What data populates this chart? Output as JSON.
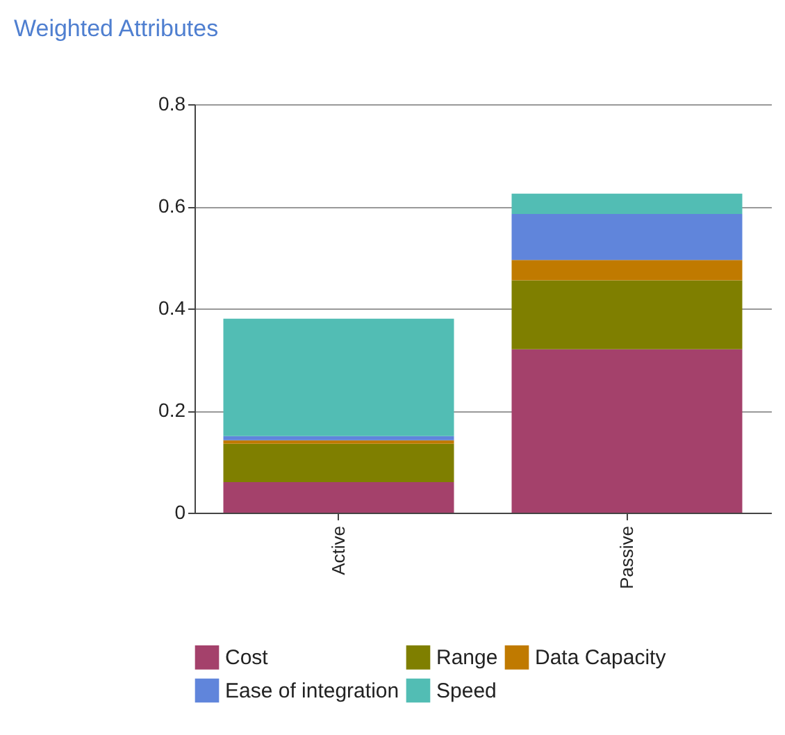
{
  "chart_data": {
    "type": "bar",
    "title": "Weighted Attributes",
    "stacked": true,
    "categories": [
      "Active",
      "Passive"
    ],
    "series": [
      {
        "name": "Cost",
        "color": "#a4416b",
        "values": [
          0.06,
          0.32
        ]
      },
      {
        "name": "Range",
        "color": "#7f7f00",
        "values": [
          0.075,
          0.135
        ]
      },
      {
        "name": "Data Capacity",
        "color": "#c07a00",
        "values": [
          0.007,
          0.04
        ]
      },
      {
        "name": "Ease of integration",
        "color": "#6085db",
        "values": [
          0.008,
          0.09
        ]
      },
      {
        "name": "Speed",
        "color": "#52bdb4",
        "values": [
          0.23,
          0.04
        ]
      }
    ],
    "ylim": [
      0,
      0.8
    ],
    "yticks": [
      0,
      0.2,
      0.4,
      0.6,
      0.8
    ],
    "grid": "y",
    "legend": "bottom"
  }
}
